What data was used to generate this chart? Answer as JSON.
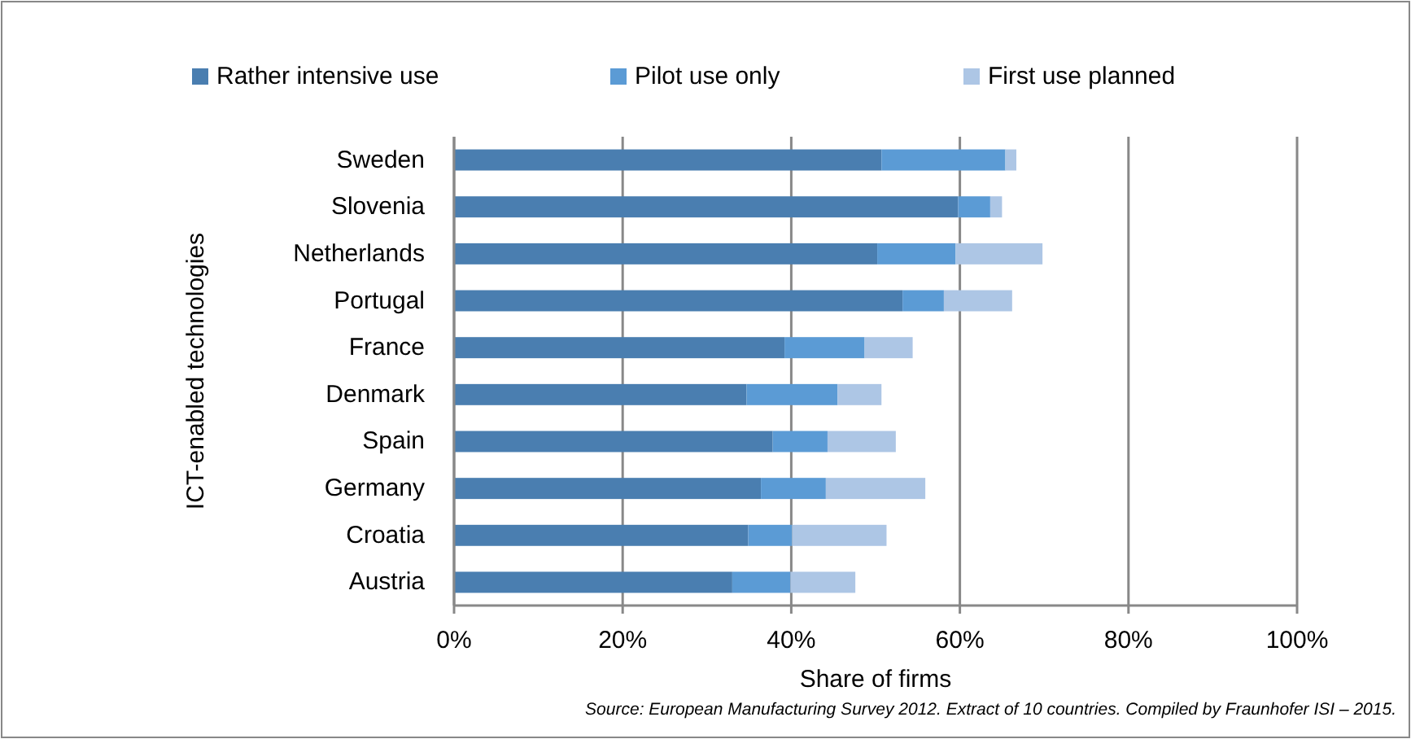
{
  "chart_data": {
    "type": "bar",
    "orientation": "horizontal",
    "stacked": true,
    "categories": [
      "Sweden",
      "Slovenia",
      "Netherlands",
      "Portugal",
      "France",
      "Denmark",
      "Spain",
      "Germany",
      "Croatia",
      "Austria"
    ],
    "series": [
      {
        "name": "Rather intensive use",
        "color": "#4a7eb0",
        "values": [
          50.7,
          59.8,
          50.2,
          53.2,
          39.2,
          34.7,
          37.8,
          36.4,
          34.9,
          33.0
        ]
      },
      {
        "name": "Pilot use only",
        "color": "#5b9bd5",
        "values": [
          14.7,
          3.8,
          9.3,
          4.9,
          9.5,
          10.8,
          6.5,
          7.7,
          5.2,
          6.9
        ]
      },
      {
        "name": "First use planned",
        "color": "#adc6e5",
        "values": [
          1.3,
          1.4,
          10.3,
          8.1,
          5.7,
          5.2,
          8.1,
          11.8,
          11.2,
          7.7
        ]
      }
    ],
    "xlim": [
      0,
      100
    ],
    "xticks": [
      {
        "value": 0,
        "label": "0%"
      },
      {
        "value": 20,
        "label": "20%"
      },
      {
        "value": 40,
        "label": "40%"
      },
      {
        "value": 60,
        "label": "60%"
      },
      {
        "value": 80,
        "label": "80%"
      },
      {
        "value": 100,
        "label": "100%"
      }
    ],
    "xlabel": "Share of firms",
    "ylabel": "ICT-enabled technologies",
    "annotations": [
      "Source: European Manufacturing Survey 2012.  Extract  of 10  countries. Compiled by Fraunhofer ISI – 2015."
    ],
    "grid": "x",
    "legend": "top"
  }
}
